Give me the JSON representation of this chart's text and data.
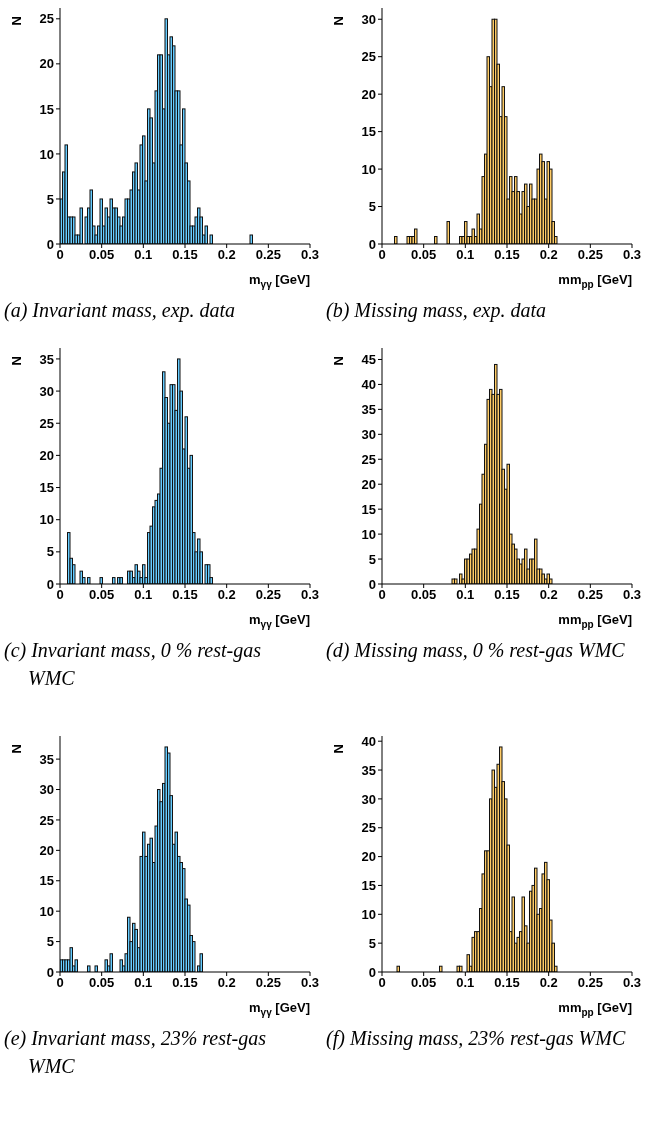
{
  "chart_data": [
    {
      "type": "histogram",
      "xlabel": "m$_{γγ}$ [GeV]",
      "ylabel": "N",
      "color": "#66ccff",
      "xlim": [
        0,
        0.3
      ],
      "xticks": [
        0,
        0.05,
        0.1,
        0.15,
        0.2,
        0.25,
        0.3
      ],
      "ylim": [
        0,
        26.2
      ],
      "yticks": [
        0,
        5,
        10,
        15,
        20,
        25
      ],
      "annotations": [
        "(a) Invariant mass, exp. data"
      ],
      "bins": [
        0,
        0.003,
        0.006,
        0.009,
        0.012,
        0.015,
        0.018,
        0.021,
        0.024,
        0.027,
        0.03,
        0.033,
        0.036,
        0.039,
        0.042,
        0.045,
        0.048,
        0.051,
        0.054,
        0.057,
        0.06,
        0.063,
        0.066,
        0.069,
        0.072,
        0.075,
        0.078,
        0.081,
        0.084,
        0.087,
        0.09,
        0.093,
        0.096,
        0.099,
        0.102,
        0.105,
        0.108,
        0.111,
        0.114,
        0.117,
        0.12,
        0.123,
        0.126,
        0.129,
        0.132,
        0.135,
        0.138,
        0.141,
        0.144,
        0.147,
        0.15,
        0.153,
        0.156,
        0.159,
        0.162,
        0.165,
        0.168,
        0.171,
        0.174,
        0.177,
        0.18,
        0.183,
        0.186,
        0.189,
        0.192,
        0.195,
        0.198,
        0.201,
        0.204,
        0.207,
        0.21,
        0.213,
        0.216,
        0.219,
        0.222,
        0.225,
        0.228,
        0.231,
        0.234,
        0.237,
        0.24,
        0.243,
        0.246,
        0.249,
        0.252,
        0.255,
        0.258,
        0.261,
        0.264,
        0.267,
        0.27,
        0.273,
        0.276,
        0.279,
        0.282,
        0.285,
        0.288,
        0.291,
        0.294,
        0.297,
        0.3
      ],
      "values": [
        5,
        8,
        11,
        3,
        3,
        3,
        1,
        1,
        4,
        0,
        3,
        4,
        6,
        2,
        1,
        2,
        5,
        2,
        4,
        3,
        5,
        4,
        4,
        3,
        2,
        3,
        5,
        5,
        6,
        8,
        9,
        6,
        11,
        12,
        7,
        15,
        14,
        9,
        17,
        21,
        21,
        15,
        25,
        21,
        23,
        22,
        17,
        17,
        11,
        15,
        9,
        7,
        2,
        2,
        3,
        4,
        3,
        1,
        2,
        0,
        1,
        0,
        0,
        0,
        0,
        0,
        0,
        0,
        0,
        0,
        0,
        0,
        0,
        0,
        0,
        0,
        1,
        0,
        0,
        0,
        0,
        0,
        0,
        0,
        0,
        0,
        0,
        0,
        0,
        0,
        0,
        0,
        0,
        0,
        0,
        0,
        0,
        0,
        0,
        0
      ]
    },
    {
      "type": "histogram",
      "xlabel": "mm$_{pp}$ [GeV]",
      "ylabel": "N",
      "color": "#ffcc66",
      "xlim": [
        0,
        0.3
      ],
      "xticks": [
        0,
        0.05,
        0.1,
        0.15,
        0.2,
        0.25,
        0.3
      ],
      "ylim": [
        0,
        31.5
      ],
      "yticks": [
        0,
        5,
        10,
        15,
        20,
        25,
        30
      ],
      "annotations": [
        "(b) Missing mass, exp. data"
      ],
      "bins": [
        0,
        0.003,
        0.006,
        0.009,
        0.012,
        0.015,
        0.018,
        0.021,
        0.024,
        0.027,
        0.03,
        0.033,
        0.036,
        0.039,
        0.042,
        0.045,
        0.048,
        0.051,
        0.054,
        0.057,
        0.06,
        0.063,
        0.066,
        0.069,
        0.072,
        0.075,
        0.078,
        0.081,
        0.084,
        0.087,
        0.09,
        0.093,
        0.096,
        0.099,
        0.102,
        0.105,
        0.108,
        0.111,
        0.114,
        0.117,
        0.12,
        0.123,
        0.126,
        0.129,
        0.132,
        0.135,
        0.138,
        0.141,
        0.144,
        0.147,
        0.15,
        0.153,
        0.156,
        0.159,
        0.162,
        0.165,
        0.168,
        0.171,
        0.174,
        0.177,
        0.18,
        0.183,
        0.186,
        0.189,
        0.192,
        0.195,
        0.198,
        0.201,
        0.204,
        0.207,
        0.21,
        0.213,
        0.216,
        0.219,
        0.222,
        0.225,
        0.228,
        0.231,
        0.234,
        0.237,
        0.24,
        0.243,
        0.246,
        0.249,
        0.252,
        0.255,
        0.258,
        0.261,
        0.264,
        0.267,
        0.27,
        0.273,
        0.276,
        0.279,
        0.282,
        0.285,
        0.288,
        0.291,
        0.294,
        0.297,
        0.3
      ],
      "values": [
        0,
        0,
        0,
        0,
        0,
        1,
        0,
        0,
        0,
        0,
        1,
        1,
        1,
        2,
        0,
        0,
        0,
        0,
        0,
        0,
        0,
        1,
        0,
        0,
        0,
        0,
        3,
        0,
        0,
        0,
        0,
        1,
        1,
        3,
        1,
        1,
        2,
        1,
        4,
        2,
        9,
        12,
        25,
        21,
        30,
        30,
        24,
        17,
        21,
        17,
        6,
        9,
        7,
        9,
        7,
        4,
        7,
        8,
        5,
        8,
        6,
        6,
        10,
        12,
        11,
        6,
        11,
        10,
        3,
        1,
        0,
        0,
        0,
        0,
        0,
        0,
        0,
        0,
        0,
        0,
        0,
        0,
        0,
        0,
        0,
        0,
        0,
        0,
        0,
        0,
        0,
        0,
        0,
        0,
        0,
        0,
        0,
        0,
        0,
        0
      ]
    },
    {
      "type": "histogram",
      "xlabel": "m$_{γγ}$ [GeV]",
      "ylabel": "N",
      "color": "#66ccff",
      "xlim": [
        0,
        0.3
      ],
      "xticks": [
        0,
        0.05,
        0.1,
        0.15,
        0.2,
        0.25,
        0.3
      ],
      "ylim": [
        0,
        36.7
      ],
      "yticks": [
        0,
        5,
        10,
        15,
        20,
        25,
        30,
        35
      ],
      "annotations": [
        "(c) Invariant mass, 0 % rest-gas WMC"
      ],
      "bins": [
        0,
        0.003,
        0.006,
        0.009,
        0.012,
        0.015,
        0.018,
        0.021,
        0.024,
        0.027,
        0.03,
        0.033,
        0.036,
        0.039,
        0.042,
        0.045,
        0.048,
        0.051,
        0.054,
        0.057,
        0.06,
        0.063,
        0.066,
        0.069,
        0.072,
        0.075,
        0.078,
        0.081,
        0.084,
        0.087,
        0.09,
        0.093,
        0.096,
        0.099,
        0.102,
        0.105,
        0.108,
        0.111,
        0.114,
        0.117,
        0.12,
        0.123,
        0.126,
        0.129,
        0.132,
        0.135,
        0.138,
        0.141,
        0.144,
        0.147,
        0.15,
        0.153,
        0.156,
        0.159,
        0.162,
        0.165,
        0.168,
        0.171,
        0.174,
        0.177,
        0.18,
        0.183,
        0.186,
        0.189,
        0.192,
        0.195,
        0.198,
        0.201,
        0.204,
        0.207,
        0.21,
        0.213,
        0.216,
        0.219,
        0.222,
        0.225,
        0.228,
        0.231,
        0.234,
        0.237,
        0.24,
        0.243,
        0.246,
        0.249,
        0.252,
        0.255,
        0.258,
        0.261,
        0.264,
        0.267,
        0.27,
        0.273,
        0.276,
        0.279,
        0.282,
        0.285,
        0.288,
        0.291,
        0.294,
        0.297,
        0.3
      ],
      "values": [
        0,
        0,
        0,
        8,
        4,
        3,
        0,
        0,
        2,
        1,
        0,
        1,
        0,
        0,
        0,
        0,
        1,
        0,
        0,
        0,
        0,
        1,
        0,
        1,
        1,
        0,
        0,
        2,
        2,
        1,
        3,
        2,
        1,
        3,
        1,
        8,
        9,
        12,
        13,
        14,
        18,
        33,
        29,
        25,
        31,
        31,
        27,
        35,
        30,
        21,
        26,
        18,
        20,
        8,
        5,
        7,
        5,
        0,
        3,
        3,
        1,
        0,
        0,
        0,
        0,
        0,
        0,
        0,
        0,
        0,
        0,
        0,
        0,
        0,
        0,
        0,
        0,
        0,
        0,
        0,
        0,
        0,
        0,
        0,
        0,
        0,
        0,
        0,
        0,
        0,
        0,
        0,
        0,
        0,
        0,
        0,
        0,
        0,
        0,
        0
      ]
    },
    {
      "type": "histogram",
      "xlabel": "mm$_{pp}$ [GeV]",
      "ylabel": "N",
      "color": "#ffcc66",
      "xlim": [
        0,
        0.3
      ],
      "xticks": [
        0,
        0.05,
        0.1,
        0.15,
        0.2,
        0.25,
        0.3
      ],
      "ylim": [
        0,
        47.3
      ],
      "yticks": [
        0,
        5,
        10,
        15,
        20,
        25,
        30,
        35,
        40,
        45
      ],
      "annotations": [
        "(d) Missing mass, 0 % rest-gas WMC"
      ],
      "bins": [
        0,
        0.003,
        0.006,
        0.009,
        0.012,
        0.015,
        0.018,
        0.021,
        0.024,
        0.027,
        0.03,
        0.033,
        0.036,
        0.039,
        0.042,
        0.045,
        0.048,
        0.051,
        0.054,
        0.057,
        0.06,
        0.063,
        0.066,
        0.069,
        0.072,
        0.075,
        0.078,
        0.081,
        0.084,
        0.087,
        0.09,
        0.093,
        0.096,
        0.099,
        0.102,
        0.105,
        0.108,
        0.111,
        0.114,
        0.117,
        0.12,
        0.123,
        0.126,
        0.129,
        0.132,
        0.135,
        0.138,
        0.141,
        0.144,
        0.147,
        0.15,
        0.153,
        0.156,
        0.159,
        0.162,
        0.165,
        0.168,
        0.171,
        0.174,
        0.177,
        0.18,
        0.183,
        0.186,
        0.189,
        0.192,
        0.195,
        0.198,
        0.201,
        0.204,
        0.207,
        0.21,
        0.213,
        0.216,
        0.219,
        0.222,
        0.225,
        0.228,
        0.231,
        0.234,
        0.237,
        0.24,
        0.243,
        0.246,
        0.249,
        0.252,
        0.255,
        0.258,
        0.261,
        0.264,
        0.267,
        0.27,
        0.273,
        0.276,
        0.279,
        0.282,
        0.285,
        0.288,
        0.291,
        0.294,
        0.297,
        0.3
      ],
      "values": [
        0,
        0,
        0,
        0,
        0,
        0,
        0,
        0,
        0,
        0,
        0,
        0,
        0,
        0,
        0,
        0,
        0,
        0,
        0,
        0,
        0,
        0,
        0,
        0,
        0,
        0,
        0,
        0,
        1,
        1,
        0,
        2,
        1,
        5,
        5,
        6,
        7,
        7,
        11,
        16,
        22,
        28,
        37,
        39,
        38,
        44,
        38,
        39,
        23,
        19,
        24,
        10,
        8,
        7,
        5,
        4,
        5,
        7,
        3,
        5,
        5,
        9,
        3,
        3,
        2,
        1,
        2,
        1,
        0,
        0,
        0,
        0,
        0,
        0,
        0,
        0,
        0,
        0,
        0,
        0,
        0,
        0,
        0,
        0,
        0,
        0,
        0,
        0,
        0,
        0,
        0,
        0,
        0,
        0,
        0,
        0,
        0,
        0,
        0,
        0
      ]
    },
    {
      "type": "histogram",
      "xlabel": "m$_{γγ}$ [GeV]",
      "ylabel": "N",
      "color": "#66ccff",
      "xlim": [
        0,
        0.3
      ],
      "xticks": [
        0,
        0.05,
        0.1,
        0.15,
        0.2,
        0.25,
        0.3
      ],
      "ylim": [
        0,
        38.8
      ],
      "yticks": [
        0,
        5,
        10,
        15,
        20,
        25,
        30,
        35
      ],
      "annotations": [
        "(e) Invariant mass, 23% rest-gas WMC"
      ],
      "bins": [
        0,
        0.003,
        0.006,
        0.009,
        0.012,
        0.015,
        0.018,
        0.021,
        0.024,
        0.027,
        0.03,
        0.033,
        0.036,
        0.039,
        0.042,
        0.045,
        0.048,
        0.051,
        0.054,
        0.057,
        0.06,
        0.063,
        0.066,
        0.069,
        0.072,
        0.075,
        0.078,
        0.081,
        0.084,
        0.087,
        0.09,
        0.093,
        0.096,
        0.099,
        0.102,
        0.105,
        0.108,
        0.111,
        0.114,
        0.117,
        0.12,
        0.123,
        0.126,
        0.129,
        0.132,
        0.135,
        0.138,
        0.141,
        0.144,
        0.147,
        0.15,
        0.153,
        0.156,
        0.159,
        0.162,
        0.165,
        0.168,
        0.171,
        0.174,
        0.177,
        0.18,
        0.183,
        0.186,
        0.189,
        0.192,
        0.195,
        0.198,
        0.201,
        0.204,
        0.207,
        0.21,
        0.213,
        0.216,
        0.219,
        0.222,
        0.225,
        0.228,
        0.231,
        0.234,
        0.237,
        0.24,
        0.243,
        0.246,
        0.249,
        0.252,
        0.255,
        0.258,
        0.261,
        0.264,
        0.267,
        0.27,
        0.273,
        0.276,
        0.279,
        0.282,
        0.285,
        0.288,
        0.291,
        0.294,
        0.297,
        0.3
      ],
      "values": [
        2,
        2,
        2,
        2,
        4,
        1,
        2,
        0,
        0,
        0,
        0,
        1,
        0,
        0,
        1,
        0,
        0,
        0,
        2,
        1,
        3,
        0,
        0,
        0,
        2,
        1,
        3,
        9,
        5,
        8,
        7,
        4,
        19,
        23,
        19,
        21,
        22,
        18,
        24,
        30,
        28,
        31,
        37,
        36,
        29,
        21,
        23,
        19,
        18,
        17,
        12,
        11,
        6,
        5,
        0,
        1,
        3,
        0,
        0,
        0,
        0,
        0,
        0,
        0,
        0,
        0,
        0,
        0,
        0,
        0,
        0,
        0,
        0,
        0,
        0,
        0,
        0,
        0,
        0,
        0,
        0,
        0,
        0,
        0,
        0,
        0,
        0,
        0,
        0,
        0,
        0,
        0,
        0,
        0,
        0,
        0,
        0,
        0,
        0,
        0
      ]
    },
    {
      "type": "histogram",
      "xlabel": "mm$_{pp}$ [GeV]",
      "ylabel": "N",
      "color": "#ffcc66",
      "xlim": [
        0,
        0.3
      ],
      "xticks": [
        0,
        0.05,
        0.1,
        0.15,
        0.2,
        0.25,
        0.3
      ],
      "ylim": [
        0,
        40.9
      ],
      "yticks": [
        0,
        5,
        10,
        15,
        20,
        25,
        30,
        35,
        40
      ],
      "annotations": [
        "(f) Missing mass, 23% rest-gas WMC"
      ],
      "bins": [
        0,
        0.003,
        0.006,
        0.009,
        0.012,
        0.015,
        0.018,
        0.021,
        0.024,
        0.027,
        0.03,
        0.033,
        0.036,
        0.039,
        0.042,
        0.045,
        0.048,
        0.051,
        0.054,
        0.057,
        0.06,
        0.063,
        0.066,
        0.069,
        0.072,
        0.075,
        0.078,
        0.081,
        0.084,
        0.087,
        0.09,
        0.093,
        0.096,
        0.099,
        0.102,
        0.105,
        0.108,
        0.111,
        0.114,
        0.117,
        0.12,
        0.123,
        0.126,
        0.129,
        0.132,
        0.135,
        0.138,
        0.141,
        0.144,
        0.147,
        0.15,
        0.153,
        0.156,
        0.159,
        0.162,
        0.165,
        0.168,
        0.171,
        0.174,
        0.177,
        0.18,
        0.183,
        0.186,
        0.189,
        0.192,
        0.195,
        0.198,
        0.201,
        0.204,
        0.207,
        0.21,
        0.213,
        0.216,
        0.219,
        0.222,
        0.225,
        0.228,
        0.231,
        0.234,
        0.237,
        0.24,
        0.243,
        0.246,
        0.249,
        0.252,
        0.255,
        0.258,
        0.261,
        0.264,
        0.267,
        0.27,
        0.273,
        0.276,
        0.279,
        0.282,
        0.285,
        0.288,
        0.291,
        0.294,
        0.297,
        0.3
      ],
      "values": [
        0,
        0,
        0,
        0,
        0,
        0,
        1,
        0,
        0,
        0,
        0,
        0,
        0,
        0,
        0,
        0,
        0,
        0,
        0,
        0,
        0,
        0,
        0,
        1,
        0,
        0,
        0,
        0,
        0,
        0,
        1,
        1,
        0,
        0,
        3,
        1,
        6,
        7,
        7,
        11,
        17,
        21,
        21,
        30,
        35,
        32,
        36,
        39,
        33,
        30,
        22,
        7,
        13,
        5,
        6,
        7,
        13,
        8,
        5,
        14,
        15,
        18,
        10,
        11,
        17,
        19,
        16,
        9,
        5,
        1,
        0,
        0,
        0,
        0,
        0,
        0,
        0,
        0,
        0,
        0,
        0,
        0,
        0,
        0,
        0,
        0,
        0,
        0,
        0,
        0,
        0,
        0,
        0,
        0,
        0,
        0,
        0,
        0,
        0,
        0
      ]
    }
  ]
}
